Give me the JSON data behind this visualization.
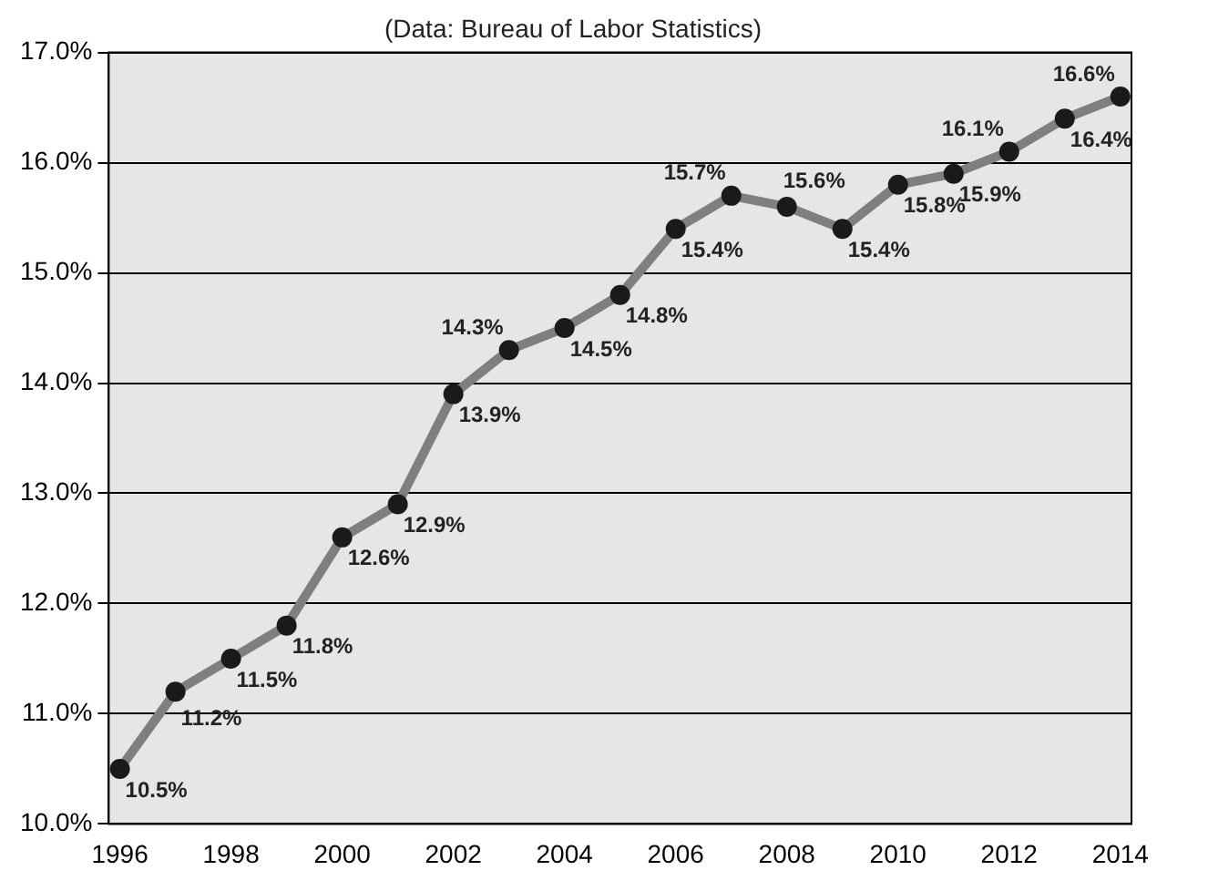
{
  "chart_data": {
    "type": "line",
    "subtitle": "(Data: Bureau of Labor Statistics)",
    "x": [
      1996,
      1997,
      1998,
      1999,
      2000,
      2001,
      2002,
      2003,
      2004,
      2005,
      2006,
      2007,
      2008,
      2009,
      2010,
      2011,
      2012,
      2013,
      2014
    ],
    "series": [
      {
        "color": "#7f7f7f",
        "values": [
          10.5,
          11.2,
          11.5,
          11.8,
          12.6,
          12.9,
          13.9,
          14.3,
          14.5,
          14.8,
          15.4,
          15.7,
          15.6,
          15.4,
          15.8,
          15.9,
          16.1,
          16.4,
          16.6
        ],
        "value_labels": [
          "10.5%",
          "11.2%",
          "11.5%",
          "11.8%",
          "12.6%",
          "12.9%",
          "13.9%",
          "14.3%",
          "14.5%",
          "14.8%",
          "15.4%",
          "15.7%",
          "15.6%",
          "15.4%",
          "15.8%",
          "15.9%",
          "16.1%",
          "16.4%",
          "16.6%"
        ]
      }
    ],
    "xlim": [
      1995.8,
      2014.2
    ],
    "xticks": [
      1996,
      1998,
      2000,
      2002,
      2004,
      2006,
      2008,
      2010,
      2012,
      2014
    ],
    "ylim": [
      10,
      17
    ],
    "yticks": [
      {
        "value": 10,
        "label": "10.0%"
      },
      {
        "value": 11,
        "label": "11.0%"
      },
      {
        "value": 12,
        "label": "12.0%"
      },
      {
        "value": 13,
        "label": "13.0%"
      },
      {
        "value": 14,
        "label": "14.0%"
      },
      {
        "value": 15,
        "label": "15.0%"
      },
      {
        "value": 16,
        "label": "16.0%"
      },
      {
        "value": 17,
        "label": "17.0%"
      }
    ],
    "grid": "y",
    "legend": false,
    "marker": "circle",
    "line_style": "solid"
  }
}
